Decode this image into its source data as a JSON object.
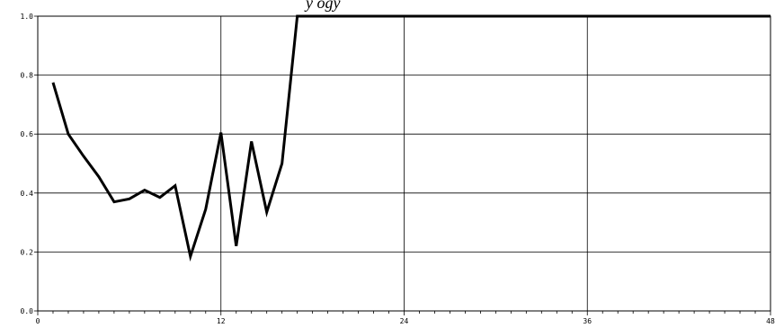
{
  "chart_data": {
    "type": "line",
    "title_fragment": "y  ogy",
    "xlabel": "",
    "ylabel": "",
    "xlim": [
      0,
      48
    ],
    "ylim": [
      0,
      1.0
    ],
    "x_ticks": [
      0,
      12,
      24,
      36,
      48
    ],
    "x_minor_step": 1,
    "y_ticks": [
      0.0,
      0.2,
      0.4,
      0.6,
      0.8,
      1.0
    ],
    "x_tick_labels": [
      "0",
      "12",
      "24",
      "36",
      "48"
    ],
    "y_tick_labels": [
      "0.0",
      "0.2",
      "0.4",
      "0.6",
      "0.8",
      "1.0"
    ],
    "grid": true,
    "legend": "none",
    "series": [
      {
        "color": "#000000",
        "x": [
          1,
          2,
          3,
          4,
          5,
          6,
          7,
          8,
          9,
          10,
          11,
          12,
          13,
          14,
          15,
          16,
          17,
          18,
          19,
          20,
          21,
          22,
          23,
          24,
          25,
          26,
          27,
          28,
          29,
          30,
          31,
          32,
          33,
          34,
          35,
          36,
          37,
          38,
          39,
          40,
          41,
          42,
          43,
          44,
          45,
          46,
          47,
          48
        ],
        "y": [
          0.775,
          0.6,
          0.525,
          0.455,
          0.37,
          0.38,
          0.41,
          0.385,
          0.425,
          0.185,
          0.345,
          0.605,
          0.22,
          0.575,
          0.335,
          0.5,
          1.0,
          1.0,
          1.0,
          1.0,
          1.0,
          1.0,
          1.0,
          1.0,
          1.0,
          1.0,
          1.0,
          1.0,
          1.0,
          1.0,
          1.0,
          1.0,
          1.0,
          1.0,
          1.0,
          1.0,
          1.0,
          1.0,
          1.0,
          1.0,
          1.0,
          1.0,
          1.0,
          1.0,
          1.0,
          1.0,
          1.0,
          1.0
        ]
      }
    ]
  }
}
